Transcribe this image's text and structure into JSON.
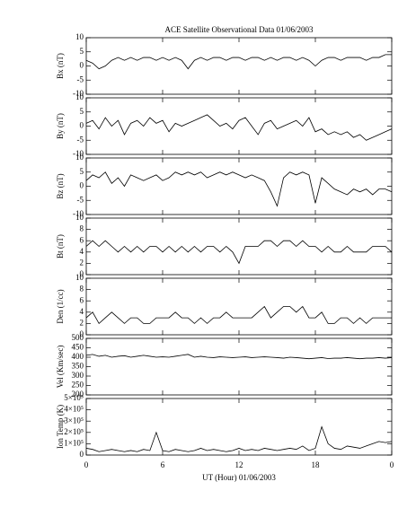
{
  "chart_data": [
    {
      "type": "line",
      "title": "ACE Satellite Observational Data  01/06/2003",
      "ylabel": "Bx (nT)",
      "x": [
        0,
        0.5,
        1,
        1.5,
        2,
        2.5,
        3,
        3.5,
        4,
        4.5,
        5,
        5.5,
        6,
        6.5,
        7,
        7.5,
        8,
        8.5,
        9,
        9.5,
        10,
        10.5,
        11,
        11.5,
        12,
        12.5,
        13,
        13.5,
        14,
        14.5,
        15,
        15.5,
        16,
        16.5,
        17,
        17.5,
        18,
        18.5,
        19,
        19.5,
        20,
        20.5,
        21,
        21.5,
        22,
        22.5,
        23,
        23.5,
        24
      ],
      "values": [
        2,
        1,
        -1,
        0,
        2,
        3,
        2,
        3,
        2,
        3,
        3,
        2,
        3,
        2,
        3,
        2,
        -1,
        2,
        3,
        2,
        3,
        3,
        2,
        3,
        3,
        2,
        3,
        3,
        2,
        3,
        2,
        3,
        3,
        2,
        3,
        2,
        0,
        2,
        3,
        3,
        2,
        3,
        3,
        3,
        2,
        3,
        3,
        4,
        4
      ],
      "xlim": [
        0,
        24
      ],
      "ylim": [
        -10,
        10
      ],
      "yticks": [
        10,
        5,
        0,
        -5,
        -10
      ]
    },
    {
      "type": "line",
      "ylabel": "By (nT)",
      "x": [
        0,
        0.5,
        1,
        1.5,
        2,
        2.5,
        3,
        3.5,
        4,
        4.5,
        5,
        5.5,
        6,
        6.5,
        7,
        7.5,
        8,
        8.5,
        9,
        9.5,
        10,
        10.5,
        11,
        11.5,
        12,
        12.5,
        13,
        13.5,
        14,
        14.5,
        15,
        15.5,
        16,
        16.5,
        17,
        17.5,
        18,
        18.5,
        19,
        19.5,
        20,
        20.5,
        21,
        21.5,
        22,
        22.5,
        23,
        23.5,
        24
      ],
      "values": [
        1,
        2,
        -1,
        3,
        0,
        2,
        -3,
        1,
        2,
        0,
        3,
        1,
        2,
        -2,
        1,
        0,
        1,
        2,
        3,
        4,
        2,
        0,
        1,
        -1,
        2,
        3,
        0,
        -3,
        1,
        2,
        -1,
        0,
        1,
        2,
        0,
        3,
        -2,
        -1,
        -3,
        -2,
        -3,
        -2,
        -4,
        -3,
        -5,
        -4,
        -3,
        -2,
        -1
      ],
      "xlim": [
        0,
        24
      ],
      "ylim": [
        -10,
        10
      ],
      "yticks": [
        10,
        5,
        0,
        -5,
        -10
      ]
    },
    {
      "type": "line",
      "ylabel": "Bz (nT)",
      "x": [
        0,
        0.5,
        1,
        1.5,
        2,
        2.5,
        3,
        3.5,
        4,
        4.5,
        5,
        5.5,
        6,
        6.5,
        7,
        7.5,
        8,
        8.5,
        9,
        9.5,
        10,
        10.5,
        11,
        11.5,
        12,
        12.5,
        13,
        13.5,
        14,
        14.5,
        15,
        15.5,
        16,
        16.5,
        17,
        17.5,
        18,
        18.5,
        19,
        19.5,
        20,
        20.5,
        21,
        21.5,
        22,
        22.5,
        23,
        23.5,
        24
      ],
      "values": [
        2,
        4,
        3,
        5,
        1,
        3,
        0,
        4,
        3,
        2,
        3,
        4,
        2,
        3,
        5,
        4,
        5,
        4,
        5,
        3,
        4,
        5,
        4,
        5,
        4,
        3,
        4,
        3,
        2,
        -2,
        -7,
        3,
        5,
        4,
        5,
        4,
        -6,
        3,
        1,
        -1,
        -2,
        -3,
        -1,
        -2,
        -1,
        -3,
        -1,
        -1,
        -2
      ],
      "xlim": [
        0,
        24
      ],
      "ylim": [
        -10,
        10
      ],
      "yticks": [
        10,
        5,
        0,
        -5,
        -10
      ]
    },
    {
      "type": "line",
      "ylabel": "Bt (nT)",
      "x": [
        0,
        0.5,
        1,
        1.5,
        2,
        2.5,
        3,
        3.5,
        4,
        4.5,
        5,
        5.5,
        6,
        6.5,
        7,
        7.5,
        8,
        8.5,
        9,
        9.5,
        10,
        10.5,
        11,
        11.5,
        12,
        12.5,
        13,
        13.5,
        14,
        14.5,
        15,
        15.5,
        16,
        16.5,
        17,
        17.5,
        18,
        18.5,
        19,
        19.5,
        20,
        20.5,
        21,
        21.5,
        22,
        22.5,
        23,
        23.5,
        24
      ],
      "values": [
        5,
        6,
        5,
        6,
        5,
        4,
        5,
        4,
        5,
        4,
        5,
        5,
        4,
        5,
        4,
        5,
        4,
        5,
        4,
        5,
        5,
        4,
        5,
        4,
        2,
        5,
        5,
        5,
        6,
        6,
        5,
        6,
        6,
        5,
        6,
        5,
        5,
        4,
        5,
        4,
        4,
        5,
        4,
        4,
        4,
        5,
        5,
        5,
        4
      ],
      "xlim": [
        0,
        24
      ],
      "ylim": [
        0,
        10
      ],
      "yticks": [
        10,
        8,
        6,
        4,
        2,
        0
      ]
    },
    {
      "type": "line",
      "ylabel": "Den (1/cc)",
      "x": [
        0,
        0.5,
        1,
        1.5,
        2,
        2.5,
        3,
        3.5,
        4,
        4.5,
        5,
        5.5,
        6,
        6.5,
        7,
        7.5,
        8,
        8.5,
        9,
        9.5,
        10,
        10.5,
        11,
        11.5,
        12,
        12.5,
        13,
        13.5,
        14,
        14.5,
        15,
        15.5,
        16,
        16.5,
        17,
        17.5,
        18,
        18.5,
        19,
        19.5,
        20,
        20.5,
        21,
        21.5,
        22,
        22.5,
        23,
        23.5,
        24
      ],
      "values": [
        3,
        4,
        2,
        3,
        4,
        3,
        2,
        3,
        3,
        2,
        2,
        3,
        3,
        3,
        4,
        3,
        3,
        2,
        3,
        2,
        3,
        3,
        4,
        3,
        3,
        3,
        3,
        4,
        5,
        3,
        4,
        5,
        5,
        4,
        5,
        3,
        3,
        4,
        2,
        2,
        3,
        3,
        2,
        3,
        2,
        3,
        3,
        3,
        3
      ],
      "xlim": [
        0,
        24
      ],
      "ylim": [
        0,
        10
      ],
      "yticks": [
        10,
        8,
        6,
        4,
        2,
        0
      ]
    },
    {
      "type": "line",
      "ylabel": "Vel (Km/sec)",
      "x": [
        0,
        0.5,
        1,
        1.5,
        2,
        2.5,
        3,
        3.5,
        4,
        4.5,
        5,
        5.5,
        6,
        6.5,
        7,
        7.5,
        8,
        8.5,
        9,
        9.5,
        10,
        10.5,
        11,
        11.5,
        12,
        12.5,
        13,
        13.5,
        14,
        14.5,
        15,
        15.5,
        16,
        16.5,
        17,
        17.5,
        18,
        18.5,
        19,
        19.5,
        20,
        20.5,
        21,
        21.5,
        22,
        22.5,
        23,
        23.5,
        24
      ],
      "values": [
        410,
        415,
        405,
        410,
        400,
        405,
        408,
        400,
        405,
        410,
        405,
        400,
        402,
        400,
        405,
        410,
        415,
        400,
        405,
        400,
        398,
        402,
        400,
        398,
        400,
        402,
        398,
        400,
        402,
        400,
        398,
        395,
        400,
        398,
        395,
        392,
        395,
        398,
        393,
        395,
        395,
        398,
        395,
        392,
        395,
        395,
        398,
        395,
        398
      ],
      "xlim": [
        0,
        24
      ],
      "ylim": [
        200,
        500
      ],
      "yticks": [
        500,
        450,
        400,
        350,
        300,
        250,
        200
      ]
    },
    {
      "type": "line",
      "ylabel": "Ion Temp (K)",
      "xlabel": "UT (Hour)  01/06/2003",
      "x": [
        0,
        0.5,
        1,
        1.5,
        2,
        2.5,
        3,
        3.5,
        4,
        4.5,
        5,
        5.5,
        6,
        6.5,
        7,
        7.5,
        8,
        8.5,
        9,
        9.5,
        10,
        10.5,
        11,
        11.5,
        12,
        12.5,
        13,
        13.5,
        14,
        14.5,
        15,
        15.5,
        16,
        16.5,
        17,
        17.5,
        18,
        18.5,
        19,
        19.5,
        20,
        20.5,
        21,
        21.5,
        22,
        22.5,
        23,
        23.5,
        24
      ],
      "values": [
        60000,
        50000,
        30000,
        40000,
        50000,
        40000,
        30000,
        40000,
        30000,
        50000,
        40000,
        200000,
        40000,
        30000,
        50000,
        40000,
        30000,
        40000,
        60000,
        40000,
        50000,
        40000,
        30000,
        40000,
        60000,
        40000,
        50000,
        40000,
        60000,
        50000,
        40000,
        50000,
        60000,
        50000,
        80000,
        40000,
        60000,
        250000,
        100000,
        60000,
        50000,
        80000,
        70000,
        60000,
        80000,
        100000,
        120000,
        110000,
        120000
      ],
      "xlim": [
        0,
        24
      ],
      "ylim": [
        0,
        500000
      ],
      "yticks": [
        {
          "value": 500000,
          "label": "5×10⁵"
        },
        {
          "value": 400000,
          "label": "4×10⁵"
        },
        {
          "value": 300000,
          "label": "3×10⁵"
        },
        {
          "value": 200000,
          "label": "2×10⁵"
        },
        {
          "value": 100000,
          "label": "1×10⁵"
        },
        0
      ],
      "xticks": [
        0,
        6,
        12,
        18,
        {
          "value": 24,
          "label": "0"
        }
      ]
    }
  ]
}
